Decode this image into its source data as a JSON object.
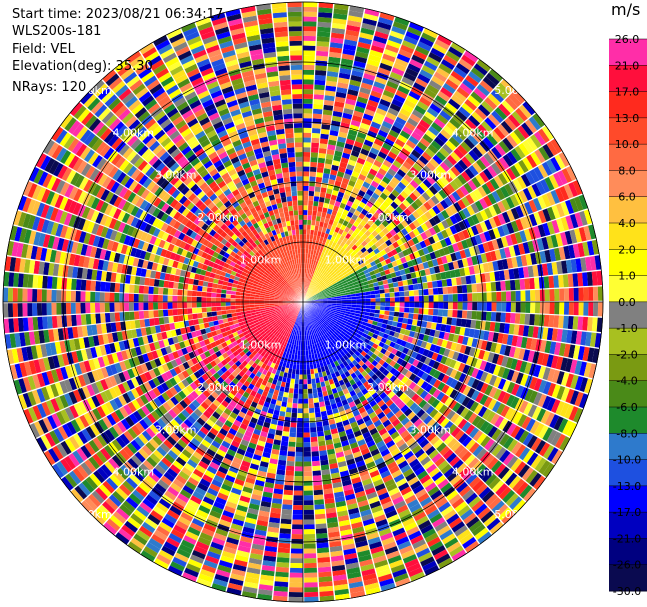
{
  "header": {
    "start_time": "Start time: 2023/08/21 06:34:17",
    "site": "WLS200s-181",
    "field": "Field: VEL",
    "elevation": "Elevation(deg): 35.30",
    "nrays": "NRays: 120"
  },
  "colorbar": {
    "unit": "m/s",
    "ticks": [
      "26.0",
      "21.0",
      "17.0",
      "13.0",
      "10.0",
      "8.0",
      "6.0",
      "4.0",
      "2.0",
      "1.0",
      "0.0",
      "-1.0",
      "-2.0",
      "-4.0",
      "-6.0",
      "-8.0",
      "-10.0",
      "-13.0",
      "-17.0",
      "-21.0",
      "-26.0",
      "-30.0"
    ],
    "colors": [
      "#ff2ea8",
      "#ff0f3c",
      "#ff2a1e",
      "#ff4a2a",
      "#ff6a42",
      "#ff8c5a",
      "#ffc040",
      "#ffe21a",
      "#ffff00",
      "#ffff33",
      "#808080",
      "#a8c020",
      "#7a9a12",
      "#4a8a18",
      "#1e8a2c",
      "#2e7acc",
      "#1e50e0",
      "#0000ff",
      "#0000c0",
      "#000080",
      "#0a0a50"
    ]
  },
  "chart_data": {
    "type": "polar PPI",
    "nrays": 120,
    "range_ring_labels": [
      "1.00km",
      "2.00km",
      "3.00km",
      "4.00km",
      "5.00km"
    ]
  }
}
